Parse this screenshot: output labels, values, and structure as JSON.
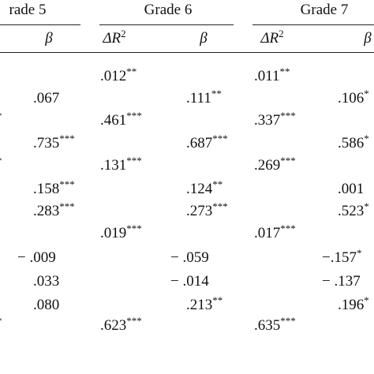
{
  "header": {
    "groups": [
      "rade 5",
      "Grade 6",
      "Grade 7"
    ],
    "columns": [
      {
        "sym": "β"
      },
      {
        "sym": "ΔR",
        "sup": "2"
      },
      {
        "sym": "β"
      },
      {
        "sym": "ΔR",
        "sup": "2"
      },
      {
        "sym": "β"
      }
    ]
  },
  "table": {
    "rows": [
      [
        null,
        null,
        {
          "text": ".012",
          "sup": "**"
        },
        null,
        {
          "text": ".011",
          "sup": "**"
        },
        null
      ],
      [
        null,
        {
          "text": ".067"
        },
        null,
        {
          "text": ".111",
          "sup": "**"
        },
        null,
        {
          "text": ".106",
          "sup": "*"
        }
      ],
      [
        {
          "sup": "*"
        },
        null,
        {
          "text": ".461",
          "sup": "***"
        },
        null,
        {
          "text": ".337",
          "sup": "***"
        },
        null
      ],
      [
        null,
        {
          "text": ".735",
          "sup": "***"
        },
        null,
        {
          "text": ".687",
          "sup": "***"
        },
        null,
        {
          "text": ".586",
          "sup": "*"
        }
      ],
      [
        {
          "sup": "*"
        },
        null,
        {
          "text": ".131",
          "sup": "***"
        },
        null,
        {
          "text": ".269",
          "sup": "***"
        },
        null
      ],
      [
        null,
        {
          "text": ".158",
          "sup": "***"
        },
        null,
        {
          "text": ".124",
          "sup": "**"
        },
        null,
        {
          "text": ".001"
        }
      ],
      [
        null,
        {
          "text": ".283",
          "sup": "***"
        },
        null,
        {
          "text": ".273",
          "sup": "***"
        },
        null,
        {
          "text": ".523",
          "sup": "*"
        }
      ],
      [
        null,
        null,
        {
          "text": ".019",
          "sup": "***"
        },
        null,
        {
          "text": ".017",
          "sup": "***"
        },
        null
      ],
      [
        null,
        {
          "text": "− .009"
        },
        null,
        {
          "text": "− .059"
        },
        null,
        {
          "text": "−.157",
          "sup": "*"
        }
      ],
      [
        null,
        {
          "text": ".033"
        },
        null,
        {
          "text": "− .014"
        },
        null,
        {
          "text": "− .137"
        }
      ],
      [
        null,
        {
          "text": ".080"
        },
        null,
        {
          "text": ".213",
          "sup": "**"
        },
        null,
        {
          "text": ".196",
          "sup": "*"
        }
      ],
      [
        {
          "sup": "*"
        },
        null,
        {
          "text": ".623",
          "sup": "***"
        },
        null,
        {
          "text": ".635",
          "sup": "***"
        },
        null
      ]
    ]
  }
}
